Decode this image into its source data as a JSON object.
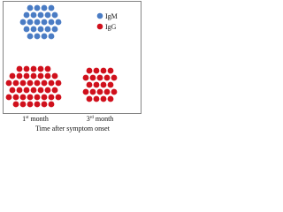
{
  "legend": [
    {
      "label": "IgM"
    },
    {
      "label": "IgG"
    }
  ],
  "x_labels": [
    {
      "number": "1",
      "suffix": "st",
      "unit": "month"
    },
    {
      "number": "3",
      "suffix": "rd",
      "unit": "month"
    }
  ],
  "x_axis_label": "Time after symptom onset"
}
